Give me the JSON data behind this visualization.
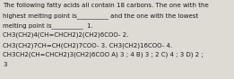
{
  "background_color": "#dedad4",
  "text_color": "#1a1a1a",
  "lines": [
    "The following fatty acids all contain 18 carbons. The one with the",
    "highest melting point is__________ and the one with the lowest",
    "melting point is__________  1.",
    "CH3(CH2)4(CH=CHCH2)2(CH2)6COO- 2.",
    "CH3(CH2)7CH=CH(CH2)7COO- 3. CH3(CH2)16COO- 4.",
    "CH3CH2(CH=CHCH2)3(CH2)6COO A) 3 ; 4 B) 3 ; 2 C) 4 ; 3 D) 2 ;",
    "3"
  ],
  "font_size": 5.0,
  "figsize": [
    2.61,
    0.88
  ],
  "dpi": 100
}
